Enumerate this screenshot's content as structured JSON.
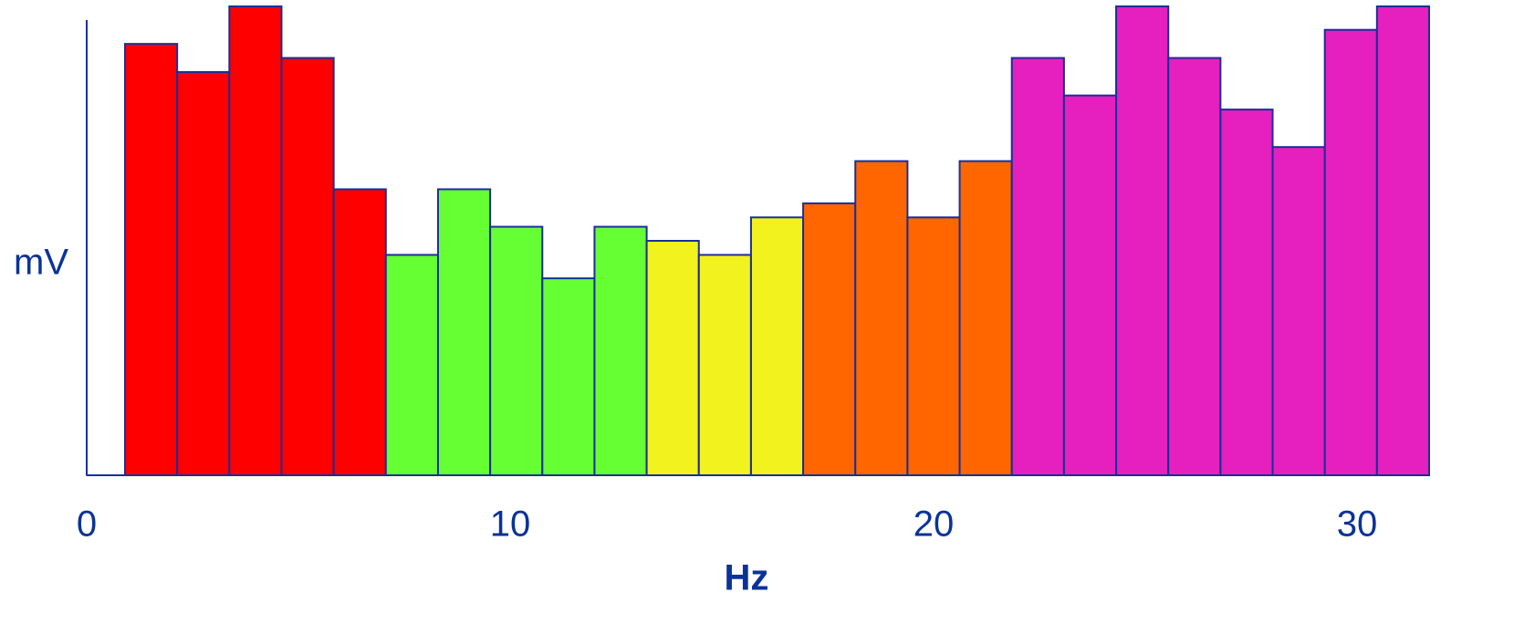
{
  "chart_data": {
    "type": "bar",
    "y_label": "mV",
    "x_label": "Hz",
    "values": [
      92,
      86,
      100,
      89,
      61,
      47,
      61,
      53,
      42,
      53,
      50,
      47,
      55,
      58,
      67,
      55,
      67,
      89,
      81,
      100,
      89,
      78,
      70,
      95,
      100
    ],
    "colors": [
      "#ff0000",
      "#ff0000",
      "#ff0000",
      "#ff0000",
      "#ff0000",
      "#66ff33",
      "#66ff33",
      "#66ff33",
      "#66ff33",
      "#66ff33",
      "#f2f21f",
      "#f2f21f",
      "#f2f21f",
      "#ff6600",
      "#ff6600",
      "#ff6600",
      "#ff6600",
      "#e61fbf",
      "#e61fbf",
      "#e61fbf",
      "#e61fbf",
      "#e61fbf",
      "#e61fbf",
      "#e61fbf",
      "#e61fbf"
    ],
    "ylim": [
      0,
      100
    ],
    "xlim": [
      0,
      31.4
    ],
    "xticks": [
      0,
      10,
      20,
      30
    ]
  }
}
